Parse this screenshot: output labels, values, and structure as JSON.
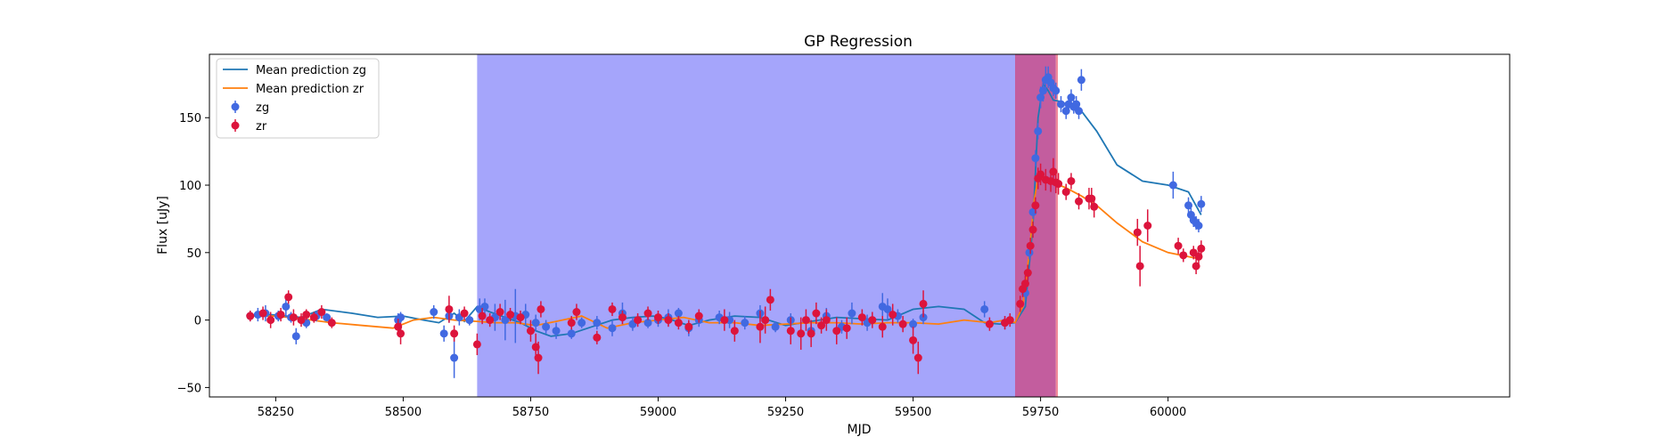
{
  "chart_data": {
    "type": "scatter",
    "title": "GP Regression",
    "xlabel": "MJD",
    "ylabel": "Flux [uJy]",
    "xlim": [
      58120,
      60670
    ],
    "ylim": [
      -57,
      197
    ],
    "xticks": [
      58250,
      58500,
      58750,
      59000,
      59250,
      59500,
      59750,
      60000
    ],
    "yticks": [
      -50,
      0,
      50,
      100,
      150
    ],
    "grid": false,
    "legend_position": "top-left",
    "shaded_regions": [
      {
        "x0": 58645,
        "x1": 59700,
        "color": "#a5a5fb"
      },
      {
        "x0": 59700,
        "x1": 59780,
        "color": "#c35d9e"
      },
      {
        "x0": 59780,
        "x1": 59784,
        "color": "#f08a9a"
      }
    ],
    "series": [
      {
        "name": "Mean prediction zg",
        "kind": "line",
        "color": "#1f77b4",
        "x": [
          58200,
          58240,
          58300,
          58340,
          58400,
          58450,
          58500,
          58540,
          58570,
          58600,
          58620,
          58645,
          58670,
          58700,
          58730,
          58760,
          58790,
          58830,
          58870,
          58910,
          58950,
          58990,
          59020,
          59060,
          59100,
          59150,
          59200,
          59250,
          59300,
          59350,
          59400,
          59450,
          59500,
          59550,
          59600,
          59640,
          59670,
          59700,
          59720,
          59735,
          59745,
          59755,
          59765,
          59775,
          59790,
          59800,
          59815,
          59830,
          59860,
          59900,
          59950,
          60000,
          60040,
          60065
        ],
        "y": [
          3,
          4,
          2,
          8,
          5,
          2,
          3,
          0,
          -2,
          5,
          -1,
          10,
          6,
          2,
          -2,
          -8,
          -12,
          -10,
          -5,
          0,
          2,
          3,
          1,
          -4,
          0,
          3,
          2,
          -4,
          -1,
          2,
          1,
          0,
          8,
          10,
          8,
          -2,
          -3,
          -2,
          10,
          70,
          150,
          175,
          170,
          163,
          162,
          160,
          156,
          155,
          140,
          115,
          103,
          100,
          95,
          78
        ]
      },
      {
        "name": "Mean prediction zr",
        "kind": "line",
        "color": "#ff7f0e",
        "x": [
          58200,
          58250,
          58300,
          58360,
          58420,
          58480,
          58520,
          58560,
          58600,
          58645,
          58680,
          58720,
          58760,
          58800,
          58850,
          58900,
          58950,
          59000,
          59050,
          59100,
          59150,
          59200,
          59250,
          59300,
          59350,
          59400,
          59450,
          59500,
          59550,
          59600,
          59650,
          59680,
          59700,
          59715,
          59728,
          59738,
          59745,
          59752,
          59760,
          59770,
          59780,
          59800,
          59830,
          59860,
          59900,
          59950,
          60000,
          60040,
          60065
        ],
        "y": [
          3,
          3,
          1,
          -2,
          -4,
          -6,
          0,
          2,
          0,
          -1,
          -2,
          -2,
          -4,
          -1,
          3,
          -6,
          -2,
          0,
          2,
          -2,
          -2,
          -4,
          -3,
          -2,
          -2,
          -3,
          -2,
          -2,
          -3,
          0,
          -2,
          0,
          -2,
          10,
          50,
          90,
          105,
          105,
          104,
          103,
          101,
          98,
          92,
          85,
          72,
          58,
          50,
          47,
          45
        ]
      },
      {
        "name": "zg",
        "kind": "errorbar",
        "color": "#4169e1",
        "x": [
          58200,
          58215,
          58230,
          58255,
          58270,
          58280,
          58290,
          58310,
          58330,
          58350,
          58490,
          58495,
          58560,
          58580,
          58590,
          58600,
          58610,
          58630,
          58650,
          58660,
          58680,
          58700,
          58720,
          58740,
          58760,
          58780,
          58800,
          58830,
          58850,
          58880,
          58910,
          58930,
          58950,
          58980,
          59000,
          59020,
          59040,
          59060,
          59080,
          59120,
          59140,
          59170,
          59200,
          59230,
          59260,
          59300,
          59330,
          59360,
          59380,
          59410,
          59440,
          59450,
          59470,
          59500,
          59520,
          59640,
          59680,
          59720,
          59728,
          59735,
          59740,
          59745,
          59750,
          59755,
          59760,
          59765,
          59770,
          59775,
          59780,
          59790,
          59800,
          59805,
          59810,
          59815,
          59820,
          59825,
          59830,
          60010,
          60040,
          60045,
          60050,
          60055,
          60060,
          60065
        ],
        "y": [
          3,
          4,
          5,
          3,
          10,
          2,
          -12,
          -2,
          3,
          2,
          0,
          2,
          6,
          -10,
          3,
          -28,
          2,
          0,
          8,
          10,
          2,
          0,
          3,
          4,
          -2,
          -5,
          -8,
          -10,
          -2,
          -2,
          -6,
          5,
          -3,
          -2,
          0,
          2,
          5,
          -6,
          0,
          2,
          0,
          -2,
          5,
          -5,
          0,
          -8,
          3,
          -5,
          5,
          -2,
          10,
          8,
          3,
          -3,
          2,
          8,
          -2,
          20,
          50,
          80,
          120,
          140,
          165,
          170,
          178,
          180,
          176,
          172,
          170,
          160,
          155,
          160,
          165,
          158,
          160,
          155,
          178,
          100,
          85,
          78,
          74,
          72,
          70,
          86
        ],
        "err": [
          4,
          5,
          6,
          4,
          8,
          4,
          6,
          4,
          4,
          3,
          5,
          4,
          5,
          6,
          5,
          15,
          6,
          4,
          8,
          6,
          10,
          15,
          20,
          8,
          6,
          5,
          6,
          4,
          4,
          5,
          6,
          8,
          5,
          4,
          5,
          6,
          4,
          6,
          5,
          5,
          6,
          5,
          6,
          4,
          5,
          5,
          6,
          5,
          8,
          6,
          10,
          8,
          5,
          4,
          5,
          6,
          5,
          5,
          5,
          5,
          6,
          6,
          8,
          8,
          10,
          8,
          6,
          6,
          6,
          6,
          6,
          5,
          6,
          5,
          6,
          6,
          8,
          10,
          6,
          5,
          5,
          5,
          5,
          6
        ]
      },
      {
        "name": "zr",
        "kind": "errorbar",
        "color": "#dc143c",
        "x": [
          58200,
          58225,
          58240,
          58260,
          58275,
          58285,
          58300,
          58310,
          58325,
          58340,
          58360,
          58490,
          58495,
          58590,
          58600,
          58620,
          58645,
          58655,
          58670,
          58690,
          58710,
          58730,
          58750,
          58760,
          58765,
          58770,
          58830,
          58840,
          58880,
          58910,
          58930,
          58960,
          58980,
          59000,
          59020,
          59040,
          59060,
          59080,
          59130,
          59150,
          59200,
          59210,
          59220,
          59260,
          59280,
          59290,
          59300,
          59310,
          59320,
          59330,
          59350,
          59370,
          59400,
          59420,
          59440,
          59460,
          59480,
          59500,
          59510,
          59520,
          59650,
          59680,
          59690,
          59710,
          59715,
          59720,
          59725,
          59730,
          59735,
          59740,
          59745,
          59750,
          59760,
          59770,
          59775,
          59780,
          59785,
          59800,
          59810,
          59825,
          59845,
          59850,
          59855,
          59940,
          59945,
          59960,
          60020,
          60030,
          60050,
          60055,
          60060,
          60065
        ],
        "y": [
          3,
          5,
          0,
          4,
          17,
          2,
          0,
          4,
          2,
          6,
          -2,
          -5,
          -10,
          8,
          -10,
          5,
          -18,
          3,
          0,
          6,
          4,
          2,
          -8,
          -20,
          -28,
          8,
          -2,
          6,
          -13,
          8,
          2,
          0,
          5,
          2,
          0,
          -2,
          -5,
          3,
          0,
          -8,
          -5,
          0,
          15,
          -8,
          -10,
          0,
          -10,
          5,
          -4,
          0,
          -8,
          -6,
          2,
          0,
          -5,
          4,
          -3,
          -15,
          -28,
          12,
          -3,
          -2,
          0,
          12,
          23,
          27,
          35,
          55,
          67,
          85,
          105,
          108,
          104,
          103,
          110,
          102,
          101,
          95,
          103,
          88,
          90,
          90,
          84,
          65,
          40,
          70,
          55,
          48,
          50,
          40,
          47,
          53
        ],
        "err": [
          4,
          5,
          6,
          5,
          5,
          6,
          5,
          4,
          4,
          5,
          4,
          6,
          8,
          10,
          6,
          5,
          8,
          6,
          5,
          6,
          5,
          5,
          8,
          10,
          12,
          6,
          5,
          6,
          5,
          5,
          5,
          5,
          5,
          5,
          5,
          5,
          5,
          5,
          8,
          8,
          12,
          10,
          8,
          10,
          12,
          8,
          10,
          8,
          6,
          8,
          10,
          8,
          6,
          6,
          8,
          8,
          6,
          10,
          12,
          10,
          5,
          5,
          5,
          6,
          6,
          6,
          6,
          6,
          6,
          6,
          8,
          8,
          8,
          8,
          10,
          8,
          8,
          6,
          6,
          6,
          8,
          8,
          8,
          10,
          15,
          12,
          6,
          5,
          5,
          6,
          6,
          6
        ]
      }
    ]
  }
}
